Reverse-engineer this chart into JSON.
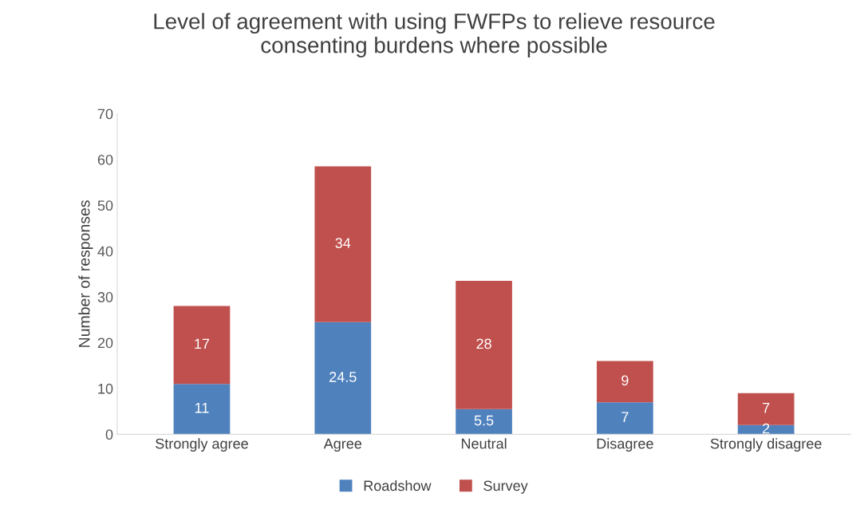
{
  "chart_data": {
    "type": "bar",
    "title": "Level of agreement with using FWFPs to relieve resource\nconsenting burdens where possible",
    "ylabel": "Number of responses",
    "categories": [
      "Strongly agree",
      "Agree",
      "Neutral",
      "Disagree",
      "Strongly disagree"
    ],
    "series": [
      {
        "name": "Roadshow",
        "color": "#4f81bd",
        "values": [
          11,
          24.5,
          5.5,
          7,
          2
        ]
      },
      {
        "name": "Survey",
        "color": "#c0504d",
        "values": [
          17,
          34,
          28,
          9,
          7
        ]
      }
    ],
    "stacked": true,
    "ylim": [
      0,
      70
    ],
    "yticks": [
      0,
      10,
      20,
      30,
      40,
      50,
      60,
      70
    ],
    "grid": false,
    "legend": "bottom",
    "data_labels": true
  }
}
